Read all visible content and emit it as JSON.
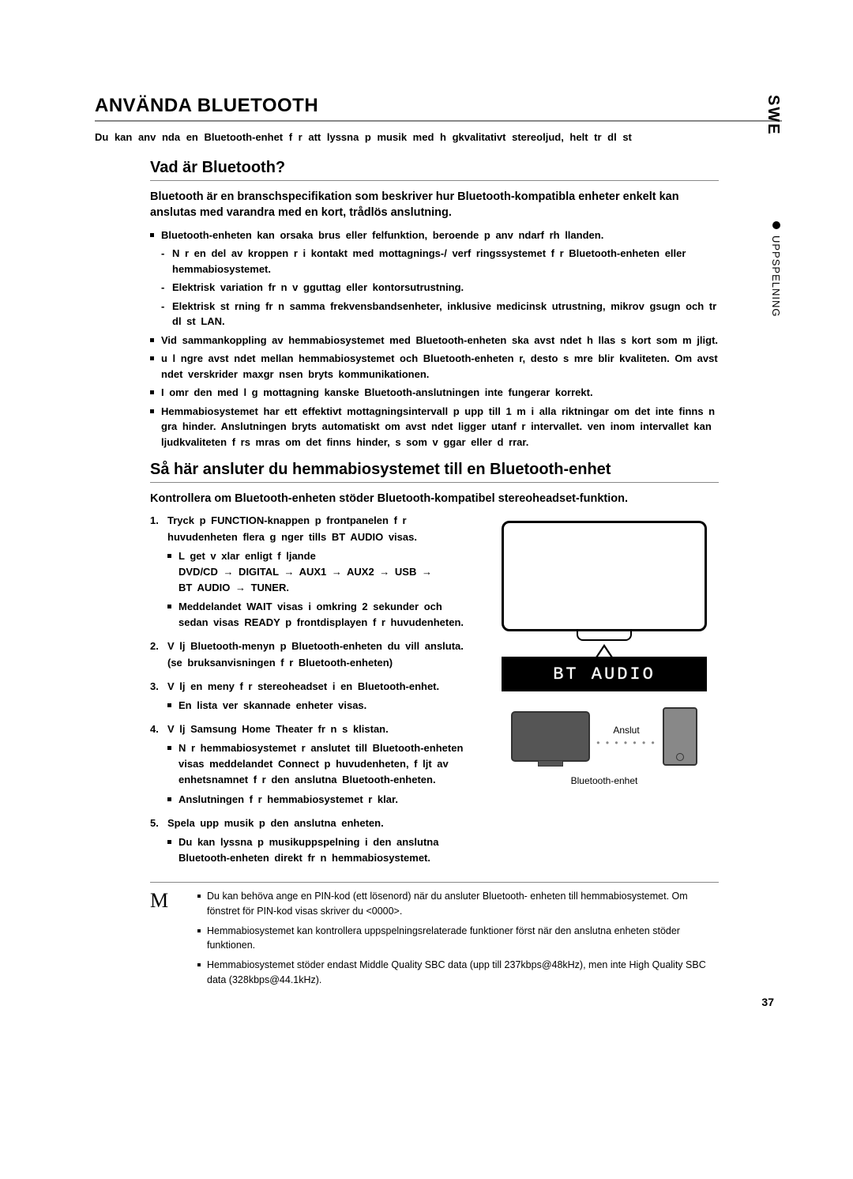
{
  "lang_tab": "SWE",
  "side_tab": "UPPSPELNING",
  "title": "ANVÄNDA BLUETOOTH",
  "intro": "Du kan anv nda en Bluetooth-enhet f r att lyssna p  musik med h gkvalitativt stereoljud, helt tr dl st",
  "sec1": {
    "heading": "Vad är Bluetooth?",
    "lead": "Bluetooth är en branschspecifikation som beskriver hur Bluetooth-kompatibla enheter enkelt kan anslutas med varandra med en kort, trådlös anslutning.",
    "b1": "Bluetooth-enheten kan orsaka brus eller felfunktion, beroende p  anv ndarf rh llanden.",
    "b1a": "N r en del av kroppen  r i kontakt med mottagnings-/ verf ringssystemet f r Bluetooth-enheten eller hemmabiosystemet.",
    "b1b": "Elektrisk variation fr n v gguttag eller kontorsutrustning.",
    "b1c": "Elektrisk st rning fr n samma frekvensbandsenheter, inklusive medicinsk utrustning, mikrov gsugn och tr dl st LAN.",
    "b2": "Vid sammankoppling av hemmabiosystemet med Bluetooth-enheten ska avst ndet h llas s  kort som m jligt.",
    "b3": "u l ngre avst ndet mellan hemmabiosystemet och Bluetooth-enheten  r, desto s mre blir kvaliteten. Om avst ndet  verskrider maxgr nsen bryts kommunikationen.",
    "b4": "I omr den med l g mottagning kanske Bluetooth-anslutningen inte fungerar korrekt.",
    "b5": "Hemmabiosystemet har ett effektivt mottagningsintervall p  upp till 1  m i alla riktningar om det inte finns n gra hinder.  Anslutningen bryts automatiskt om avst ndet ligger utanf r intervallet.  ven inom intervallet kan ljudkvaliteten f rs mras om det finns hinder, s som v ggar eller d rrar."
  },
  "sec2": {
    "heading": "Så här ansluter du hemmabiosystemet till en Bluetooth-enhet",
    "lead": "Kontrollera om Bluetooth-enheten stöder Bluetooth-kompatibel stereoheadset-funktion.",
    "s1": "Tryck p  FUNCTION-knappen p  frontpanelen f r huvudenheten flera g nger tills  BT AUDIO  visas.",
    "s1n1": "L get v xlar enligt f ljande\nDVD/CD → DIGITAL → AUX1 → AUX2 → USB →\nBT AUDIO → TUNER.",
    "s1n2": "Meddelandet  WAIT  visas i omkring 2 sekunder och sedan visas  READY  p  frontdisplayen f r huvudenheten.",
    "s2": "V lj Bluetooth-menyn p  Bluetooth-enheten du vill ansluta.  (se bruksanvisningen f r Bluetooth-enheten)",
    "s3": "V lj en meny f r stereoheadset i en Bluetooth-enhet.",
    "s3n": "En lista  ver skannade enheter visas.",
    "s4": "V lj  Samsung Home Theater  fr n s klistan.",
    "s4n1": "N r hemmabiosystemet  r anslutet till Bluetooth-enheten visas meddelandet  Connect  p  huvudenheten, f ljt av enhetsnamnet f r den anslutna Bluetooth-enheten.",
    "s4n2": "Anslutningen f r hemmabiosystemet  r klar.",
    "s5": "Spela upp musik p  den anslutna enheten.",
    "s5n": "Du kan lyssna p  musikuppspelning i den anslutna Bluetooth-enheten direkt fr n hemmabiosystemet."
  },
  "display_text": "BT AUDIO",
  "connect_label": "Anslut",
  "device_label": "Bluetooth-enhet",
  "notes": {
    "n1": "Du kan behöva ange en PIN-kod (ett lösenord) när du ansluter Bluetooth- enheten till hemmabiosystemet. Om fönstret för PIN-kod visas skriver du <0000>.",
    "n2": "Hemmabiosystemet kan kontrollera uppspelningsrelaterade funktioner först när den anslutna enheten stöder funktionen.",
    "n3": "Hemmabiosystemet stöder endast Middle Quality SBC data (upp till 237kbps@48kHz), men inte High Quality SBC data (328kbps@44.1kHz)."
  },
  "page_number": "37"
}
